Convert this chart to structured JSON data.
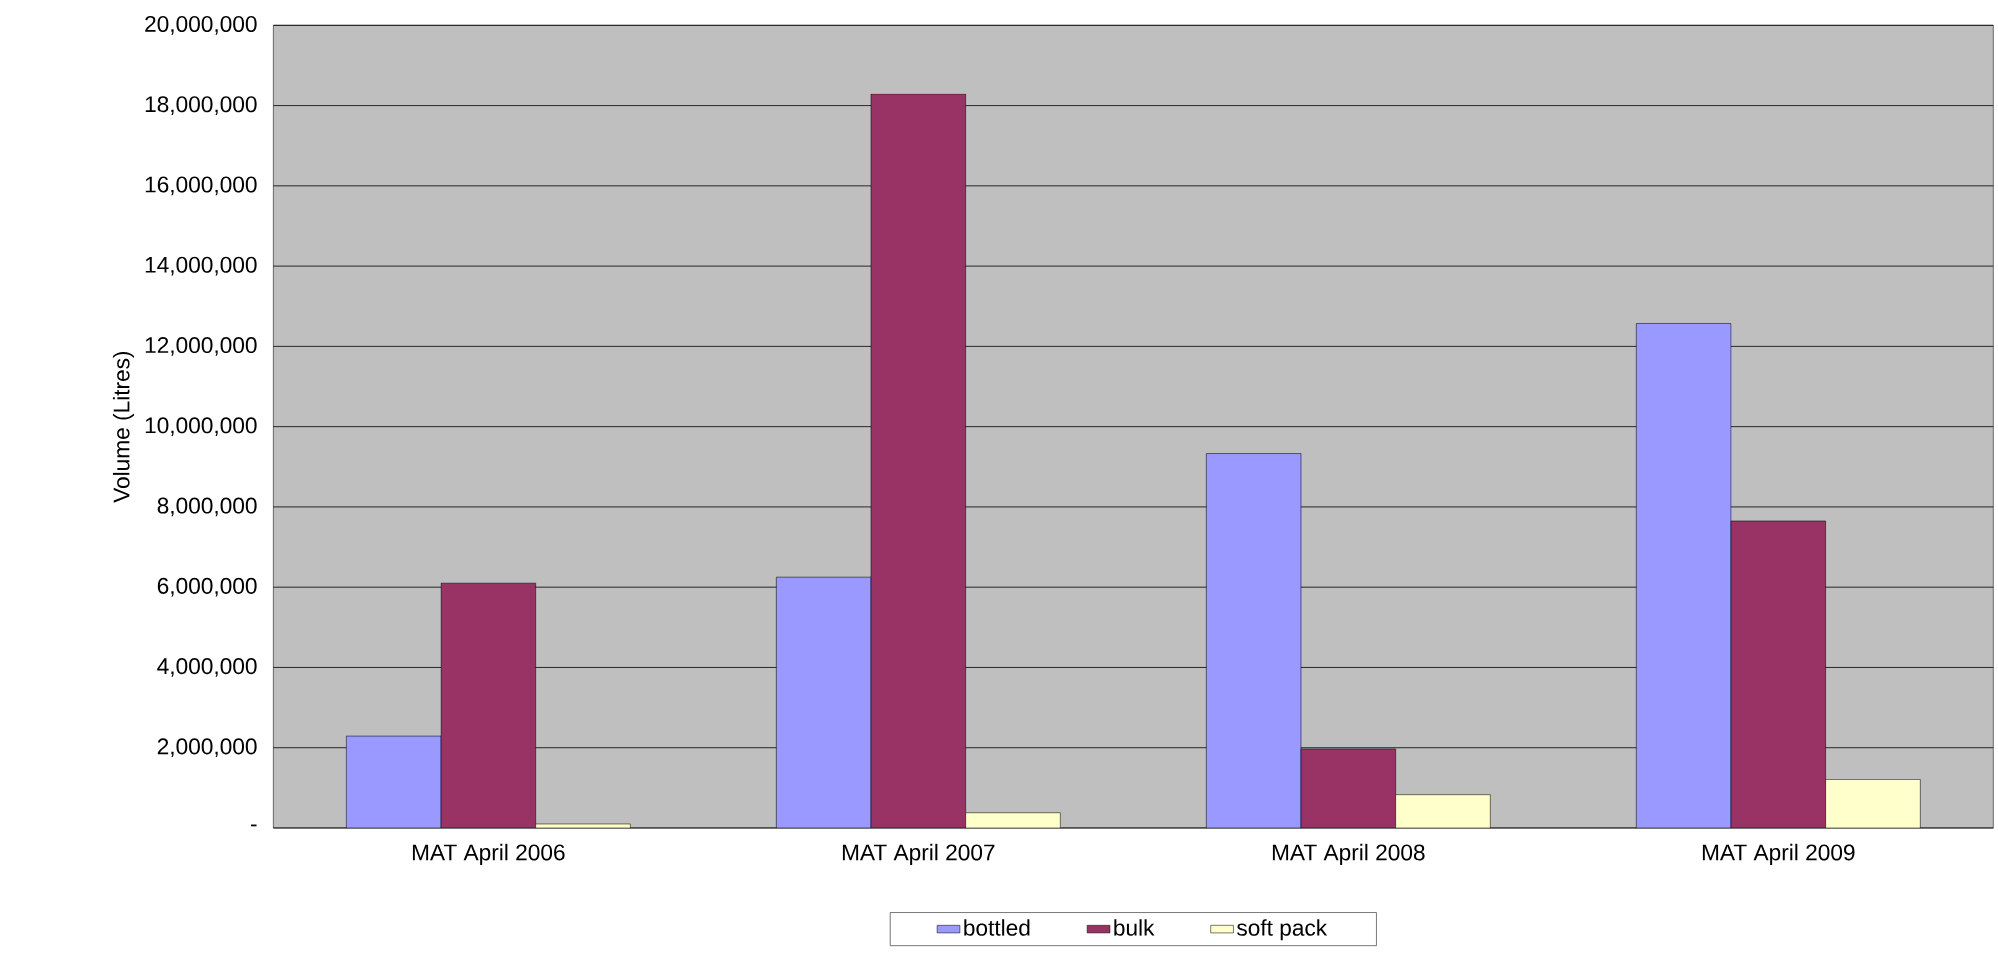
{
  "chart_data": {
    "type": "bar",
    "ylabel": "Volume (Litres)",
    "categories": [
      "MAT April 2006",
      "MAT April 2007",
      "MAT April 2008",
      "MAT April 2009"
    ],
    "series": [
      {
        "name": "bottled",
        "color": "#9999ff",
        "values": [
          2290000,
          6250000,
          9330000,
          12570000
        ]
      },
      {
        "name": "bulk",
        "color": "#993366",
        "values": [
          6100000,
          18290000,
          1970000,
          7650000
        ]
      },
      {
        "name": "soft pack",
        "color": "#ffffcc",
        "values": [
          100000,
          380000,
          830000,
          1210000
        ]
      }
    ],
    "ylim": [
      0,
      20000000
    ],
    "yticks": [
      {
        "value": 0,
        "label": "-"
      },
      {
        "value": 2000000,
        "label": "2,000,000"
      },
      {
        "value": 4000000,
        "label": "4,000,000"
      },
      {
        "value": 6000000,
        "label": "6,000,000"
      },
      {
        "value": 8000000,
        "label": "8,000,000"
      },
      {
        "value": 10000000,
        "label": "10,000,000"
      },
      {
        "value": 12000000,
        "label": "12,000,000"
      },
      {
        "value": 14000000,
        "label": "14,000,000"
      },
      {
        "value": 16000000,
        "label": "16,000,000"
      },
      {
        "value": 18000000,
        "label": "18,000,000"
      },
      {
        "value": 20000000,
        "label": "20,000,000"
      }
    ],
    "grid": "y",
    "legend": "bottom"
  }
}
